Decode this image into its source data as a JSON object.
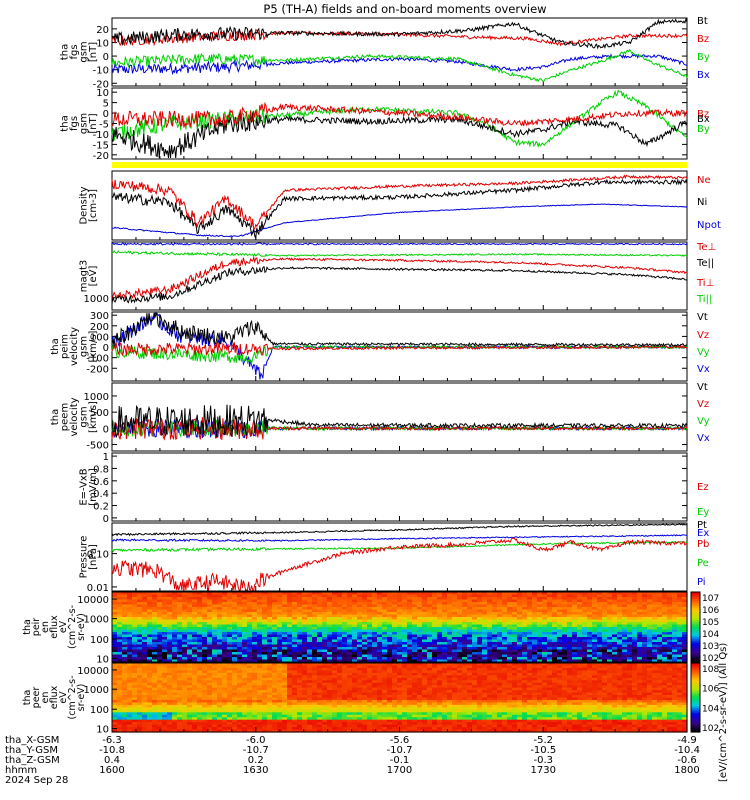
{
  "title": "P5 (TH-A) fields and on-board moments overview",
  "colors": {
    "black": "#000000",
    "red": "#e00000",
    "green": "#00d000",
    "blue": "#0000e0",
    "yellow": "#ffff00"
  },
  "chart_data": [
    {
      "type": "line",
      "panel": "fgs_gsm_1",
      "ylabel": [
        "tha",
        "fgs",
        "gsm",
        "[nT]"
      ],
      "ylim": [
        -22,
        28
      ],
      "yticks": [
        -20,
        -10,
        0,
        10,
        20
      ],
      "series": [
        {
          "name": "Bt",
          "color": "black"
        },
        {
          "name": "Bz",
          "color": "red"
        },
        {
          "name": "By",
          "color": "green"
        },
        {
          "name": "Bx",
          "color": "blue"
        }
      ]
    },
    {
      "type": "line",
      "panel": "fgs_gsm_2",
      "ylabel": [
        "tha",
        "fgs",
        "gsm",
        "[nT]"
      ],
      "ylim": [
        -22,
        12
      ],
      "yticks": [
        -20,
        -15,
        -10,
        -5,
        0,
        5,
        10
      ],
      "series": [
        {
          "name": "Bz",
          "color": "red"
        },
        {
          "name": "Bx",
          "color": "black"
        },
        {
          "name": "By",
          "color": "green"
        }
      ]
    },
    {
      "type": "line",
      "panel": "density",
      "ylabel": [
        "Density",
        "[cm-3]"
      ],
      "series": [
        {
          "name": "Ne",
          "color": "red"
        },
        {
          "name": "Ni",
          "color": "black"
        },
        {
          "name": "Npot",
          "color": "blue"
        }
      ]
    },
    {
      "type": "line",
      "panel": "temperature",
      "ylabel": [
        "magt3",
        "[eV]"
      ],
      "yticks": [
        "1000"
      ],
      "series": [
        {
          "name": "Te⊥",
          "color": "red"
        },
        {
          "name": "Te||",
          "color": "black"
        },
        {
          "name": "Ti⊥",
          "color": "red"
        },
        {
          "name": "Ti||",
          "color": "green"
        }
      ]
    },
    {
      "type": "line",
      "panel": "peim_velocity",
      "ylabel": [
        "tha",
        "peim",
        "velocity",
        "gsm",
        "[km/s]"
      ],
      "ylim": [
        -320,
        330
      ],
      "yticks": [
        -200,
        -100,
        0,
        100,
        200,
        300
      ],
      "series": [
        {
          "name": "Vt",
          "color": "black"
        },
        {
          "name": "Vz",
          "color": "red"
        },
        {
          "name": "Vy",
          "color": "green"
        },
        {
          "name": "Vx",
          "color": "blue"
        }
      ]
    },
    {
      "type": "line",
      "panel": "peem_velocity",
      "ylabel": [
        "tha",
        "peem",
        "velocity",
        "gsm",
        "[km/s]"
      ],
      "ylim": [
        -700,
        1400
      ],
      "yticks": [
        -500,
        0,
        500,
        1000
      ],
      "series": [
        {
          "name": "Vt",
          "color": "black"
        },
        {
          "name": "Vz",
          "color": "red"
        },
        {
          "name": "Vy",
          "color": "green"
        },
        {
          "name": "Vx",
          "color": "blue"
        }
      ]
    },
    {
      "type": "line",
      "panel": "efield",
      "ylabel": [
        "E=-VxB",
        "[mV/m]"
      ],
      "ylim": [
        -0.05,
        1.05
      ],
      "yticks": [
        0.0,
        0.2,
        0.4,
        0.6,
        0.8,
        1.0
      ],
      "series": [
        {
          "name": "Ez",
          "color": "red"
        },
        {
          "name": "Ey",
          "color": "green"
        },
        {
          "name": "Ex",
          "color": "blue"
        }
      ]
    },
    {
      "type": "line",
      "panel": "pressure",
      "ylabel": [
        "Pressure",
        "[nPa]"
      ],
      "yscale": "log",
      "yticks": [
        "0.01",
        "0.10"
      ],
      "series": [
        {
          "name": "Pt",
          "color": "black"
        },
        {
          "name": "Pb",
          "color": "red"
        },
        {
          "name": "Pe",
          "color": "green"
        },
        {
          "name": "Pi",
          "color": "blue"
        }
      ]
    },
    {
      "type": "heatmap",
      "panel": "peir_en_eflux",
      "ylabel": [
        "tha",
        "peir",
        "en",
        "eflux",
        "eV",
        "(cm^2-s-",
        "sr-eV)"
      ],
      "yscale": "log",
      "yticks": [
        "10",
        "100",
        "1000",
        "10000"
      ]
    },
    {
      "type": "heatmap",
      "panel": "peer_en_eflux",
      "ylabel": [
        "tha",
        "peer",
        "en",
        "eflux",
        "eV",
        "(cm^2-s-",
        "sr-eV)"
      ],
      "yscale": "log",
      "yticks": [
        "10",
        "100",
        "1000",
        "10000"
      ]
    }
  ],
  "colorbars": [
    {
      "ticks": [
        "10^7",
        "10^6",
        "10^5",
        "10^4",
        "10^3",
        "10^2"
      ]
    },
    {
      "ticks": [
        "10^8",
        "10^6",
        "10^4",
        "10^2"
      ]
    }
  ],
  "colorbar_label": "[eV/(cm^2-s-sr-eV)] (All Qs)",
  "xaxis": {
    "labels": [
      "tha_X-GSM",
      "tha_Y-GSM",
      "tha_Z-GSM",
      "hhmm",
      "2024 Sep 28"
    ],
    "rows": [
      [
        "-6.3",
        "-6.0",
        "-5.6",
        "-5.2",
        "-4.9"
      ],
      [
        "-10.8",
        "-10.7",
        "-10.7",
        "-10.5",
        "-10.4"
      ],
      [
        "0.4",
        "0.2",
        "-0.1",
        "-0.3",
        "-0.6"
      ],
      [
        "1600",
        "1630",
        "1700",
        "1730",
        "1800"
      ]
    ]
  }
}
